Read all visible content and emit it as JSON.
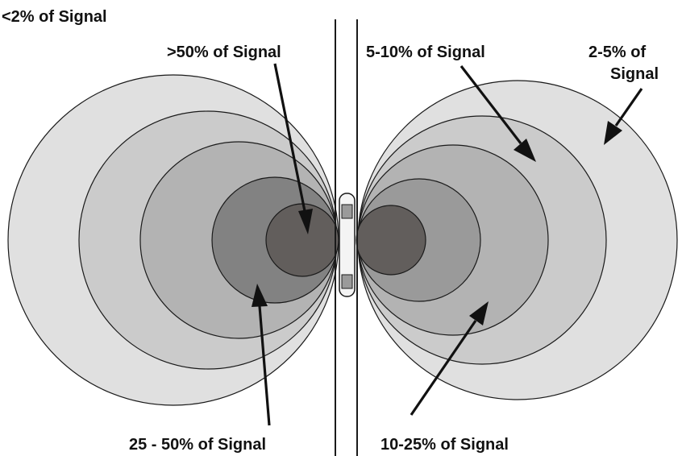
{
  "labels": {
    "lt2": "<2% of Signal",
    "gt50": ">50% of Signal",
    "s5_10": "5-10% of Signal",
    "s2_5_line1": "2-5% of",
    "s2_5_line2": "Signal",
    "s25_50": "25 - 50% of Signal",
    "s10_25": "10-25% of Signal"
  },
  "colors": {
    "zone_lt2": "#e0e0e0",
    "zone_2_5": "#cbcbcb",
    "zone_5_10": "#b3b3b3",
    "zone_10_25": "#9a9a9a",
    "zone_25_50": "#828282",
    "zone_gt50": "#625e5c",
    "stroke": "#1a1a1a"
  }
}
